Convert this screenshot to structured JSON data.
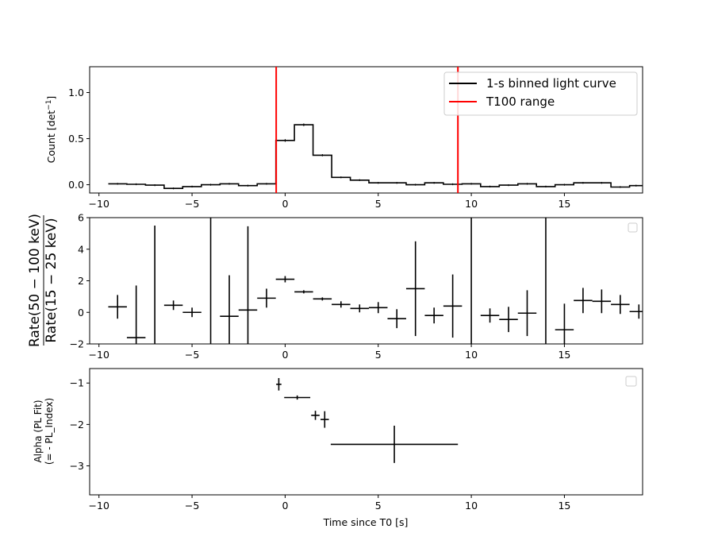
{
  "colors": {
    "axes": "#000000",
    "curve": "#000000",
    "t100": "#ff0000",
    "legend_border": "#cccccc"
  },
  "chart_data": [
    {
      "type": "line",
      "panel": "top",
      "ylabel_pre": "Count [det",
      "ylabel_sup": "−1",
      "ylabel_post": "]",
      "xlim": [
        -10.5,
        19.2
      ],
      "ylim": [
        -0.09,
        1.28
      ],
      "xticks": [
        -10,
        -5,
        0,
        5,
        10,
        15
      ],
      "xtick_labels": [
        "−10",
        "−5",
        "0",
        "5",
        "10",
        "15"
      ],
      "yticks": [
        0.0,
        0.5,
        1.0
      ],
      "ytick_labels": [
        "0.0",
        "0.5",
        "1.0"
      ],
      "legend": {
        "placement": "upper right",
        "entries": [
          "1-s binned light curve",
          "T100 range"
        ]
      },
      "t100_range": [
        -0.48,
        9.28
      ],
      "bins": [
        {
          "x0": -9.5,
          "x1": -8.5,
          "y": 0.01,
          "err": 0.01
        },
        {
          "x0": -8.5,
          "x1": -7.5,
          "y": 0.005,
          "err": 0.01
        },
        {
          "x0": -7.5,
          "x1": -6.5,
          "y": -0.005,
          "err": 0.01
        },
        {
          "x0": -6.5,
          "x1": -5.5,
          "y": -0.04,
          "err": 0.01
        },
        {
          "x0": -5.5,
          "x1": -4.5,
          "y": -0.02,
          "err": 0.01
        },
        {
          "x0": -4.5,
          "x1": -3.5,
          "y": 0.0,
          "err": 0.01
        },
        {
          "x0": -3.5,
          "x1": -2.5,
          "y": 0.01,
          "err": 0.01
        },
        {
          "x0": -2.5,
          "x1": -1.5,
          "y": -0.01,
          "err": 0.01
        },
        {
          "x0": -1.5,
          "x1": -0.5,
          "y": 0.01,
          "err": 0.01
        },
        {
          "x0": -0.5,
          "x1": 0.5,
          "y": 0.48,
          "err": 0.015
        },
        {
          "x0": 0.5,
          "x1": 1.5,
          "y": 0.65,
          "err": 0.015
        },
        {
          "x0": 1.5,
          "x1": 2.5,
          "y": 0.32,
          "err": 0.012
        },
        {
          "x0": 2.5,
          "x1": 3.5,
          "y": 0.08,
          "err": 0.01
        },
        {
          "x0": 3.5,
          "x1": 4.5,
          "y": 0.05,
          "err": 0.01
        },
        {
          "x0": 4.5,
          "x1": 5.5,
          "y": 0.02,
          "err": 0.01
        },
        {
          "x0": 5.5,
          "x1": 6.5,
          "y": 0.02,
          "err": 0.01
        },
        {
          "x0": 6.5,
          "x1": 7.5,
          "y": 0.0,
          "err": 0.01
        },
        {
          "x0": 7.5,
          "x1": 8.5,
          "y": 0.02,
          "err": 0.01
        },
        {
          "x0": 8.5,
          "x1": 9.5,
          "y": 0.005,
          "err": 0.01
        },
        {
          "x0": 9.5,
          "x1": 10.5,
          "y": 0.01,
          "err": 0.01
        },
        {
          "x0": 10.5,
          "x1": 11.5,
          "y": -0.02,
          "err": 0.01
        },
        {
          "x0": 11.5,
          "x1": 12.5,
          "y": -0.005,
          "err": 0.01
        },
        {
          "x0": 12.5,
          "x1": 13.5,
          "y": 0.01,
          "err": 0.01
        },
        {
          "x0": 13.5,
          "x1": 14.5,
          "y": -0.02,
          "err": 0.01
        },
        {
          "x0": 14.5,
          "x1": 15.5,
          "y": 0.0,
          "err": 0.01
        },
        {
          "x0": 15.5,
          "x1": 16.5,
          "y": 0.02,
          "err": 0.01
        },
        {
          "x0": 16.5,
          "x1": 17.5,
          "y": 0.02,
          "err": 0.01
        },
        {
          "x0": 17.5,
          "x1": 18.5,
          "y": -0.025,
          "err": 0.01
        },
        {
          "x0": 18.5,
          "x1": 19.2,
          "y": -0.01,
          "err": 0.01
        }
      ]
    },
    {
      "type": "scatter",
      "panel": "middle",
      "ylabel_num": "Rate(50 − 100 keV)",
      "ylabel_den": "Rate(15 − 25 keV)",
      "xlim": [
        -10.5,
        19.2
      ],
      "ylim": [
        -2,
        6
      ],
      "xticks": [
        -10,
        -5,
        0,
        5,
        10,
        15
      ],
      "xtick_labels": [
        "−10",
        "−5",
        "0",
        "5",
        "10",
        "15"
      ],
      "yticks": [
        -2,
        0,
        2,
        4,
        6
      ],
      "ytick_labels": [
        "−2",
        "0",
        "2",
        "4",
        "6"
      ],
      "legend": {
        "placement": "upper right",
        "entries": []
      },
      "points": [
        {
          "x": -9.0,
          "xerr": 0.5,
          "y": 0.35,
          "yerr_lo": 0.75,
          "yerr_hi": 0.75
        },
        {
          "x": -8.0,
          "xerr": 0.5,
          "y": -1.6,
          "yerr_lo": 0.8,
          "yerr_hi": 3.3
        },
        {
          "x": -7.0,
          "xerr": 0.0,
          "y": 2.0,
          "yerr_lo": 4.0,
          "yerr_hi": 3.5
        },
        {
          "x": -6.0,
          "xerr": 0.5,
          "y": 0.45,
          "yerr_lo": 0.3,
          "yerr_hi": 0.3
        },
        {
          "x": -5.0,
          "xerr": 0.5,
          "y": 0.0,
          "yerr_lo": 0.3,
          "yerr_hi": 0.3
        },
        {
          "x": -4.0,
          "xerr": 0.0,
          "y": 2.0,
          "yerr_lo": 4.0,
          "yerr_hi": 4.0
        },
        {
          "x": -3.0,
          "xerr": 0.5,
          "y": -0.25,
          "yerr_lo": 1.75,
          "yerr_hi": 2.6
        },
        {
          "x": -2.0,
          "xerr": 0.5,
          "y": 0.15,
          "yerr_lo": 2.15,
          "yerr_hi": 5.3
        },
        {
          "x": -1.0,
          "xerr": 0.5,
          "y": 0.9,
          "yerr_lo": 0.6,
          "yerr_hi": 0.6
        },
        {
          "x": 0.0,
          "xerr": 0.5,
          "y": 2.1,
          "yerr_lo": 0.2,
          "yerr_hi": 0.2
        },
        {
          "x": 1.0,
          "xerr": 0.5,
          "y": 1.3,
          "yerr_lo": 0.1,
          "yerr_hi": 0.1
        },
        {
          "x": 2.0,
          "xerr": 0.5,
          "y": 0.85,
          "yerr_lo": 0.1,
          "yerr_hi": 0.1
        },
        {
          "x": 3.0,
          "xerr": 0.5,
          "y": 0.5,
          "yerr_lo": 0.2,
          "yerr_hi": 0.2
        },
        {
          "x": 4.0,
          "xerr": 0.5,
          "y": 0.25,
          "yerr_lo": 0.25,
          "yerr_hi": 0.25
        },
        {
          "x": 5.0,
          "xerr": 0.5,
          "y": 0.3,
          "yerr_lo": 0.35,
          "yerr_hi": 0.35
        },
        {
          "x": 6.0,
          "xerr": 0.5,
          "y": -0.4,
          "yerr_lo": 0.6,
          "yerr_hi": 0.6
        },
        {
          "x": 7.0,
          "xerr": 0.5,
          "y": 1.5,
          "yerr_lo": 3.0,
          "yerr_hi": 3.0
        },
        {
          "x": 8.0,
          "xerr": 0.5,
          "y": -0.2,
          "yerr_lo": 0.5,
          "yerr_hi": 0.5
        },
        {
          "x": 9.0,
          "xerr": 0.5,
          "y": 0.4,
          "yerr_lo": 2.0,
          "yerr_hi": 2.0
        },
        {
          "x": 10.0,
          "xerr": 0.0,
          "y": 2.0,
          "yerr_lo": 4.0,
          "yerr_hi": 4.0
        },
        {
          "x": 11.0,
          "xerr": 0.5,
          "y": -0.2,
          "yerr_lo": 0.45,
          "yerr_hi": 0.45
        },
        {
          "x": 12.0,
          "xerr": 0.5,
          "y": -0.45,
          "yerr_lo": 0.8,
          "yerr_hi": 0.8
        },
        {
          "x": 13.0,
          "xerr": 0.5,
          "y": -0.05,
          "yerr_lo": 1.45,
          "yerr_hi": 1.45
        },
        {
          "x": 14.0,
          "xerr": 0.0,
          "y": 2.0,
          "yerr_lo": 4.0,
          "yerr_hi": 4.0
        },
        {
          "x": 15.0,
          "xerr": 0.5,
          "y": -1.1,
          "yerr_lo": 1.1,
          "yerr_hi": 1.65
        },
        {
          "x": 16.0,
          "xerr": 0.5,
          "y": 0.75,
          "yerr_lo": 0.8,
          "yerr_hi": 0.8
        },
        {
          "x": 17.0,
          "xerr": 0.5,
          "y": 0.7,
          "yerr_lo": 0.75,
          "yerr_hi": 0.75
        },
        {
          "x": 18.0,
          "xerr": 0.5,
          "y": 0.5,
          "yerr_lo": 0.6,
          "yerr_hi": 0.6
        },
        {
          "x": 19.0,
          "xerr": 0.5,
          "y": 0.05,
          "yerr_lo": 0.45,
          "yerr_hi": 0.45
        }
      ]
    },
    {
      "type": "scatter",
      "panel": "bottom",
      "ylabel_line1": "Alpha (PL Fit)",
      "ylabel_line2": "(= - PL_Index)",
      "xlabel": "Time since T0 [s]",
      "xlim": [
        -10.5,
        19.2
      ],
      "ylim": [
        -3.7,
        -0.65
      ],
      "xticks": [
        -10,
        -5,
        0,
        5,
        10,
        15
      ],
      "xtick_labels": [
        "−10",
        "−5",
        "0",
        "5",
        "10",
        "15"
      ],
      "yticks": [
        -3,
        -2,
        -1
      ],
      "ytick_labels": [
        "−3",
        "−2",
        "−1"
      ],
      "legend": {
        "placement": "upper right",
        "entries": []
      },
      "points": [
        {
          "x0": -0.48,
          "x1": -0.2,
          "y": -1.03,
          "yerr": 0.15
        },
        {
          "x0": -0.05,
          "x1": 1.35,
          "y": -1.35,
          "yerr": 0.05
        },
        {
          "x0": 1.4,
          "x1": 1.85,
          "y": -1.78,
          "yerr": 0.11
        },
        {
          "x0": 1.9,
          "x1": 2.35,
          "y": -1.88,
          "yerr": 0.2
        },
        {
          "x0": 2.45,
          "x1": 9.28,
          "y": -2.48,
          "yerr": 0.45
        }
      ]
    }
  ]
}
